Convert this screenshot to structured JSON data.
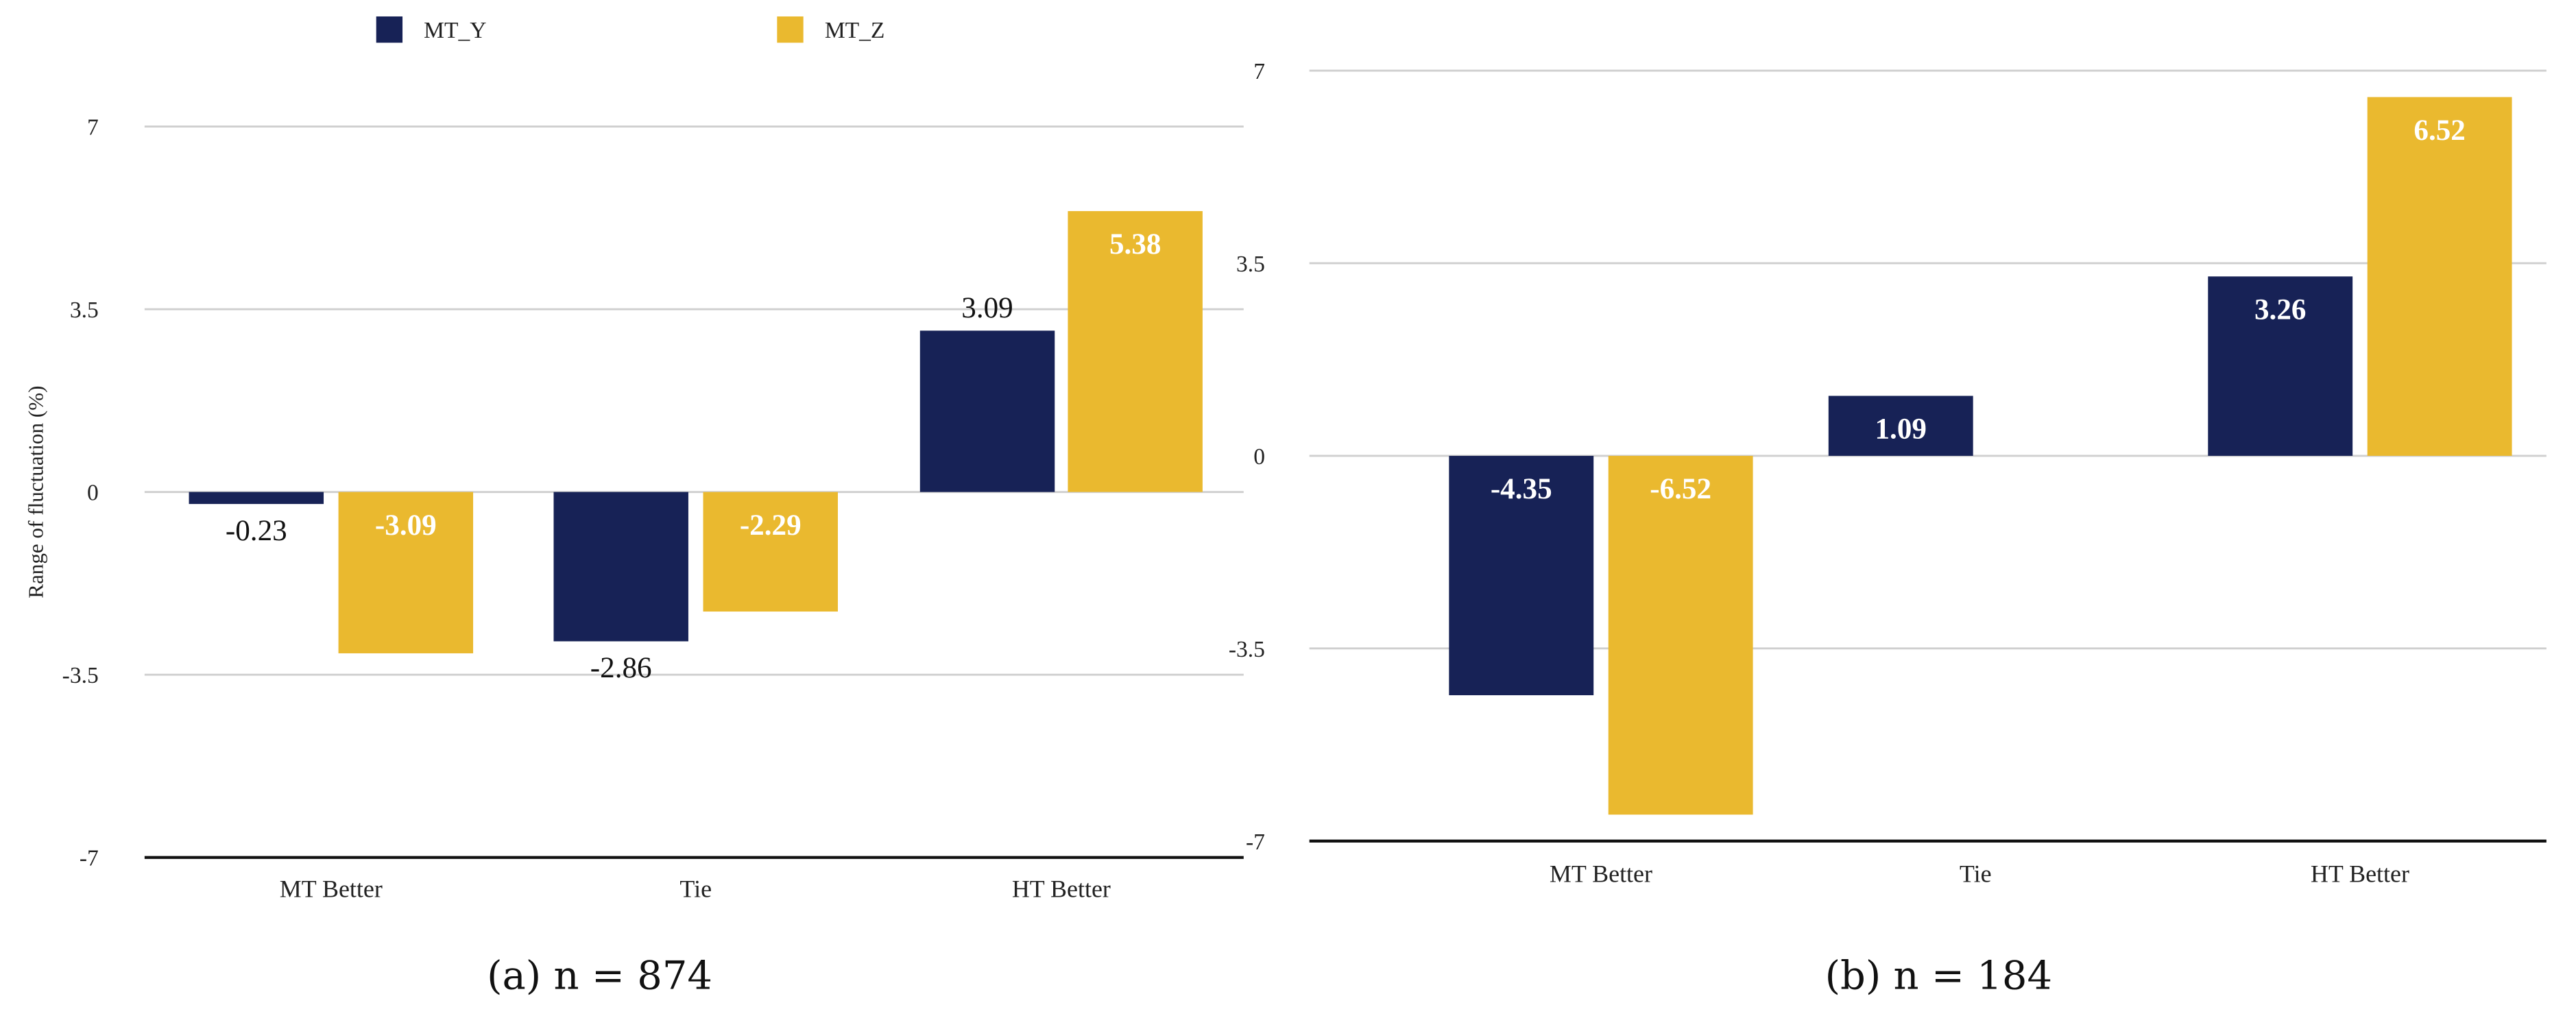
{
  "legend": [
    {
      "name": "MT_Y",
      "color": "#172256"
    },
    {
      "name": "MT_Z",
      "color": "#EAB92F"
    }
  ],
  "chart_data": [
    {
      "type": "bar",
      "caption": "(a) n = 874",
      "ylabel": "Range of fluctuation (%)",
      "categories": [
        "MT Better",
        "Tie",
        "HT Better"
      ],
      "yticks": [
        "7",
        "3.5",
        "0",
        "-3.5",
        "-7"
      ],
      "ylim": [
        -7,
        7
      ],
      "grid": true,
      "legend_position": "top",
      "series": [
        {
          "name": "MT_Y",
          "values": [
            -0.23,
            -2.86,
            3.09
          ],
          "labels": [
            "-0.23",
            "-2.86",
            "3.09"
          ],
          "label_position": "outside"
        },
        {
          "name": "MT_Z",
          "values": [
            -3.09,
            -2.29,
            5.38
          ],
          "labels": [
            "-3.09",
            "-2.29",
            "5.38"
          ],
          "label_position": "inside"
        }
      ]
    },
    {
      "type": "bar",
      "caption": "(b) n = 184",
      "ylabel": "",
      "categories": [
        "MT Better",
        "Tie",
        "HT Better"
      ],
      "yticks": [
        "7",
        "3.5",
        "0",
        "-3.5",
        "-7"
      ],
      "ylim": [
        -7,
        7
      ],
      "grid": true,
      "series": [
        {
          "name": "MT_Y",
          "values": [
            -4.35,
            1.09,
            3.26
          ],
          "labels": [
            "-4.35",
            "1.09",
            "3.26"
          ],
          "label_position": "inside"
        },
        {
          "name": "MT_Z",
          "values": [
            -6.52,
            null,
            6.52
          ],
          "labels": [
            "-6.52",
            "",
            "6.52"
          ],
          "label_position": "inside"
        }
      ]
    }
  ]
}
